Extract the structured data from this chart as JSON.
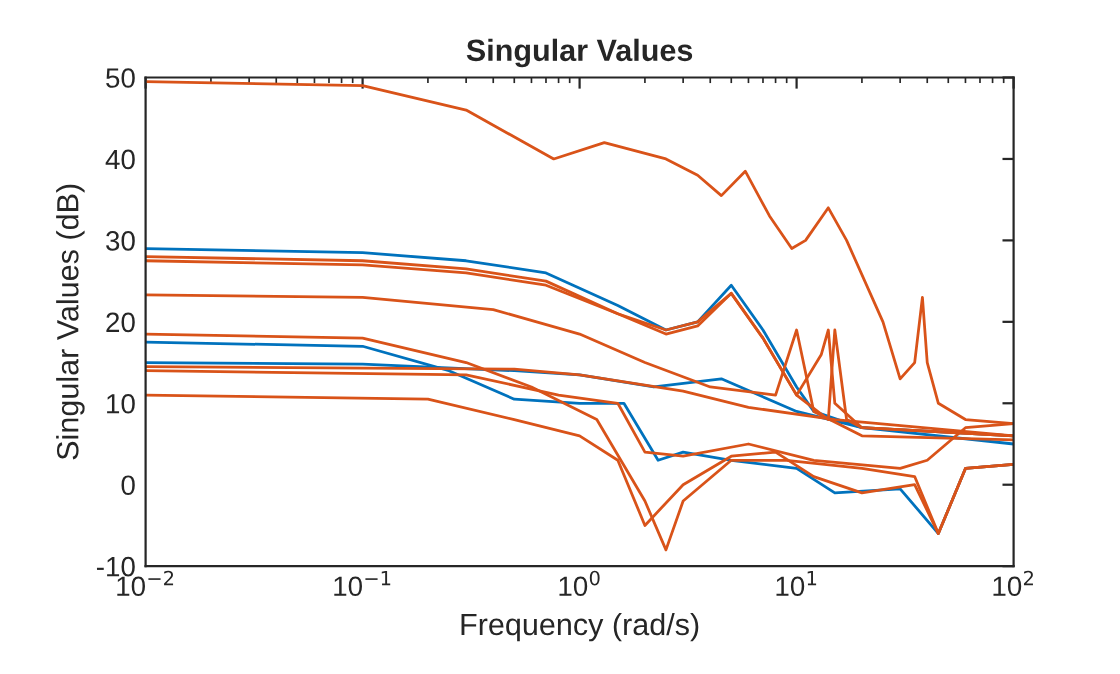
{
  "chart_data": {
    "type": "line",
    "title": "Singular Values",
    "xlabel": "Frequency (rad/s)",
    "ylabel": "Singular Values (dB)",
    "log": "x",
    "grid": false,
    "xlim": [
      0.01,
      100
    ],
    "ylim": [
      -10,
      50
    ],
    "xticks": [
      {
        "value": 0.01,
        "label": "10$^{−2}$"
      },
      {
        "value": 0.1,
        "label": "10$^{−1}$"
      },
      {
        "value": 1,
        "label": "10$^{0}$"
      },
      {
        "value": 10,
        "label": "10$^{1}$"
      },
      {
        "value": 100,
        "label": "10$^{2}$"
      }
    ],
    "yticks": [
      -10,
      0,
      10,
      20,
      30,
      40,
      50
    ],
    "series": [
      {
        "color": "#0072bd",
        "x": [
          0.01,
          0.1,
          0.3,
          0.7,
          1.5,
          2.5,
          3.5,
          5,
          7,
          10,
          12,
          20,
          100
        ],
        "values": [
          29,
          28.5,
          27.5,
          26,
          22,
          19,
          20,
          24.5,
          19,
          12,
          9,
          7,
          6
        ]
      },
      {
        "color": "#0072bd",
        "x": [
          0.01,
          0.1,
          0.25,
          0.5,
          1,
          1.6,
          2.3,
          3,
          5,
          10,
          15,
          30,
          45,
          60,
          100
        ],
        "values": [
          17.5,
          17,
          14,
          10.5,
          10,
          10,
          3,
          4,
          3,
          2,
          -1,
          -0.5,
          -6,
          2,
          2.5
        ]
      },
      {
        "color": "#0072bd",
        "x": [
          0.01,
          0.1,
          0.5,
          1,
          2.2,
          4.5,
          10,
          20,
          100
        ],
        "values": [
          15,
          14.8,
          14,
          13.5,
          12,
          13,
          9,
          7,
          5
        ]
      },
      {
        "color": "#d95319",
        "x": [
          0.01,
          0.1,
          0.3,
          0.76,
          1.3,
          2.5,
          3.5,
          4.5,
          5.8,
          7.5,
          9.5,
          11,
          14,
          17,
          25,
          30,
          35,
          38,
          40,
          45,
          60,
          100
        ],
        "values": [
          49.5,
          49,
          46,
          40,
          42,
          40,
          38,
          35.5,
          38.5,
          33,
          29,
          30,
          34,
          30,
          20,
          13,
          15,
          23,
          15,
          10,
          8,
          7.5
        ]
      },
      {
        "color": "#d95319",
        "x": [
          0.01,
          0.1,
          0.3,
          0.7,
          1.5,
          2.5,
          3.5,
          5,
          7,
          10,
          13,
          14,
          15,
          20,
          100
        ],
        "values": [
          28,
          27.5,
          26.5,
          25,
          21,
          19,
          20,
          23.5,
          18,
          11,
          16,
          19,
          10,
          7,
          6
        ]
      },
      {
        "color": "#d95319",
        "x": [
          0.01,
          0.1,
          0.3,
          0.7,
          1.5,
          2.5,
          3.5,
          5,
          7,
          10,
          14,
          15,
          17,
          20,
          100
        ],
        "values": [
          27.5,
          27,
          26,
          24.5,
          21,
          18.5,
          19.5,
          23.5,
          18,
          11,
          8,
          19,
          8,
          7,
          6
        ]
      },
      {
        "color": "#d95319",
        "x": [
          0.01,
          0.1,
          0.4,
          1,
          2,
          4,
          8,
          10,
          12,
          20,
          100
        ],
        "values": [
          23.3,
          23,
          21.5,
          18.5,
          15,
          12,
          11,
          19,
          9,
          6,
          5.5
        ]
      },
      {
        "color": "#d95319",
        "x": [
          0.01,
          0.1,
          0.3,
          0.6,
          1.2,
          2,
          2.5,
          3,
          5,
          9,
          20,
          35,
          45,
          60,
          100
        ],
        "values": [
          18.5,
          18,
          15,
          12,
          8,
          -2,
          -8,
          -2,
          3,
          3,
          2,
          1,
          -6,
          2,
          2.5
        ]
      },
      {
        "color": "#d95319",
        "x": [
          0.01,
          0.2,
          0.5,
          1,
          1.5,
          2,
          3,
          5,
          8,
          12,
          20,
          35,
          45,
          60,
          100
        ],
        "values": [
          11,
          10.5,
          8,
          6,
          3,
          -5,
          0,
          3.5,
          4,
          1,
          -1,
          0,
          -6,
          2,
          2.5
        ]
      },
      {
        "color": "#d95319",
        "x": [
          0.01,
          0.5,
          1,
          3,
          6,
          15,
          100
        ],
        "values": [
          14.5,
          14.2,
          13.5,
          11.5,
          9.5,
          8,
          6
        ]
      },
      {
        "color": "#d95319",
        "x": [
          0.01,
          0.3,
          0.8,
          1.5,
          2,
          3,
          6,
          12,
          30,
          40,
          60,
          100
        ],
        "values": [
          14,
          13.5,
          11,
          10,
          4,
          3.5,
          5,
          3,
          2,
          3,
          7,
          7.5
        ]
      }
    ]
  }
}
